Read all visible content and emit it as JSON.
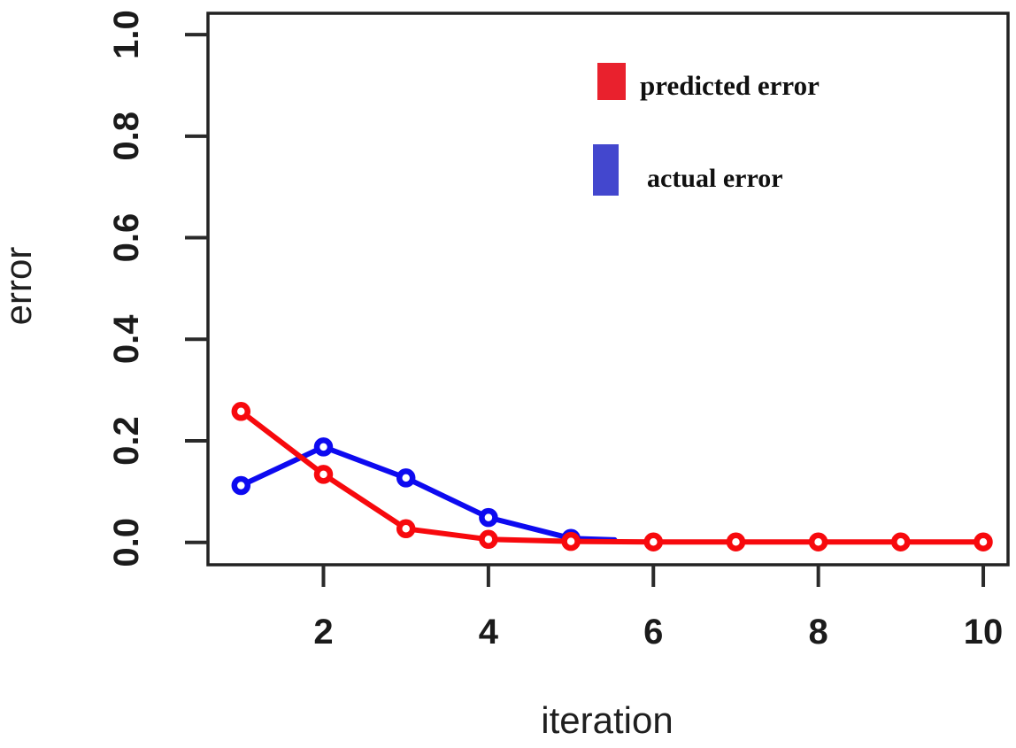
{
  "chart_data": {
    "type": "line",
    "title": "",
    "xlabel": "iteration",
    "ylabel": "error",
    "xlim": [
      0.6,
      10.3
    ],
    "ylim": [
      -0.044,
      1.042
    ],
    "grid": false,
    "background": "#ffffff",
    "frame_color": "#222222",
    "tick_color": "#2a2a2a",
    "tick_label_color": "#1b1b1b",
    "x_ticks": [
      {
        "label": "2",
        "value": 2
      },
      {
        "label": "4",
        "value": 4
      },
      {
        "label": "6",
        "value": 6
      },
      {
        "label": "8",
        "value": 8
      },
      {
        "label": "10",
        "value": 10
      }
    ],
    "y_ticks": [
      {
        "label": "0.0",
        "value": 0.0
      },
      {
        "label": "0.2",
        "value": 0.2
      },
      {
        "label": "0.4",
        "value": 0.4
      },
      {
        "label": "0.6",
        "value": 0.6
      },
      {
        "label": "0.8",
        "value": 0.8
      },
      {
        "label": "1.0",
        "value": 1.0
      }
    ],
    "legend": {
      "position": "top-right",
      "entries": [
        {
          "label": "predicted error",
          "color": "#e9212d"
        },
        {
          "label": "actual error",
          "color": "#4347ce"
        }
      ]
    },
    "series": [
      {
        "name": "actual error",
        "color": "#0d0af0",
        "marker": "open-circle",
        "x": [
          1,
          2,
          3,
          4,
          5
        ],
        "values": [
          0.112,
          0.188,
          0.127,
          0.049,
          0.008
        ],
        "line_extension": {
          "x": 5.53,
          "y": 0.005
        }
      },
      {
        "name": "predicted error",
        "color": "#f7090d",
        "marker": "open-circle",
        "x": [
          1,
          2,
          3,
          4,
          5,
          6,
          7,
          8,
          9,
          10
        ],
        "values": [
          0.258,
          0.134,
          0.027,
          0.006,
          0.002,
          0.001,
          0.001,
          0.001,
          0.001,
          0.001
        ]
      }
    ]
  }
}
